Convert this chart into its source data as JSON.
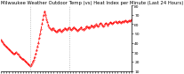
{
  "title": "Milwaukee Weather Outdoor Temp (vs) Heat Index per Minute (Last 24 Hours)",
  "line_color": "#ff0000",
  "bg_color": "#ffffff",
  "y_values": [
    43,
    42,
    41,
    39,
    38,
    37,
    36,
    35,
    34,
    33,
    32,
    31,
    30,
    29,
    28,
    28,
    29,
    30,
    28,
    27,
    26,
    25,
    24,
    23,
    23,
    22,
    21,
    20,
    19,
    18,
    17,
    16,
    15,
    16,
    18,
    20,
    22,
    25,
    28,
    32,
    36,
    40,
    45,
    50,
    55,
    60,
    65,
    70,
    74,
    70,
    65,
    62,
    59,
    57,
    55,
    54,
    55,
    56,
    54,
    53,
    52,
    52,
    53,
    54,
    55,
    53,
    52,
    53,
    54,
    55,
    56,
    55,
    54,
    55,
    56,
    57,
    55,
    54,
    55,
    56,
    57,
    56,
    55,
    54,
    53,
    54,
    55,
    56,
    57,
    55,
    54,
    55,
    56,
    57,
    58,
    57,
    56,
    57,
    58,
    59,
    58,
    57,
    58,
    59,
    60,
    59,
    58,
    59,
    60,
    61,
    60,
    59,
    58,
    59,
    60,
    61,
    60,
    59,
    60,
    61,
    62,
    61,
    60,
    61,
    62,
    63,
    62,
    61,
    62,
    63,
    62,
    61,
    62,
    63,
    62,
    63,
    64,
    63,
    62,
    63,
    64,
    63,
    64,
    65
  ],
  "vline_positions": [
    32,
    75
  ],
  "ylim": [
    10,
    80
  ],
  "yticks": [
    10,
    20,
    30,
    40,
    50,
    60,
    70,
    80
  ],
  "ytick_labels": [
    "10",
    "20",
    "30",
    "40",
    "50",
    "60",
    "70",
    "80"
  ],
  "title_fontsize": 3.8,
  "tick_fontsize": 3.2,
  "line_width": 0.6,
  "linestyle": "--",
  "marker": ".",
  "marker_size": 0.8,
  "num_xticks": 48,
  "vline_color": "#aaaaaa",
  "vline_style": ":"
}
